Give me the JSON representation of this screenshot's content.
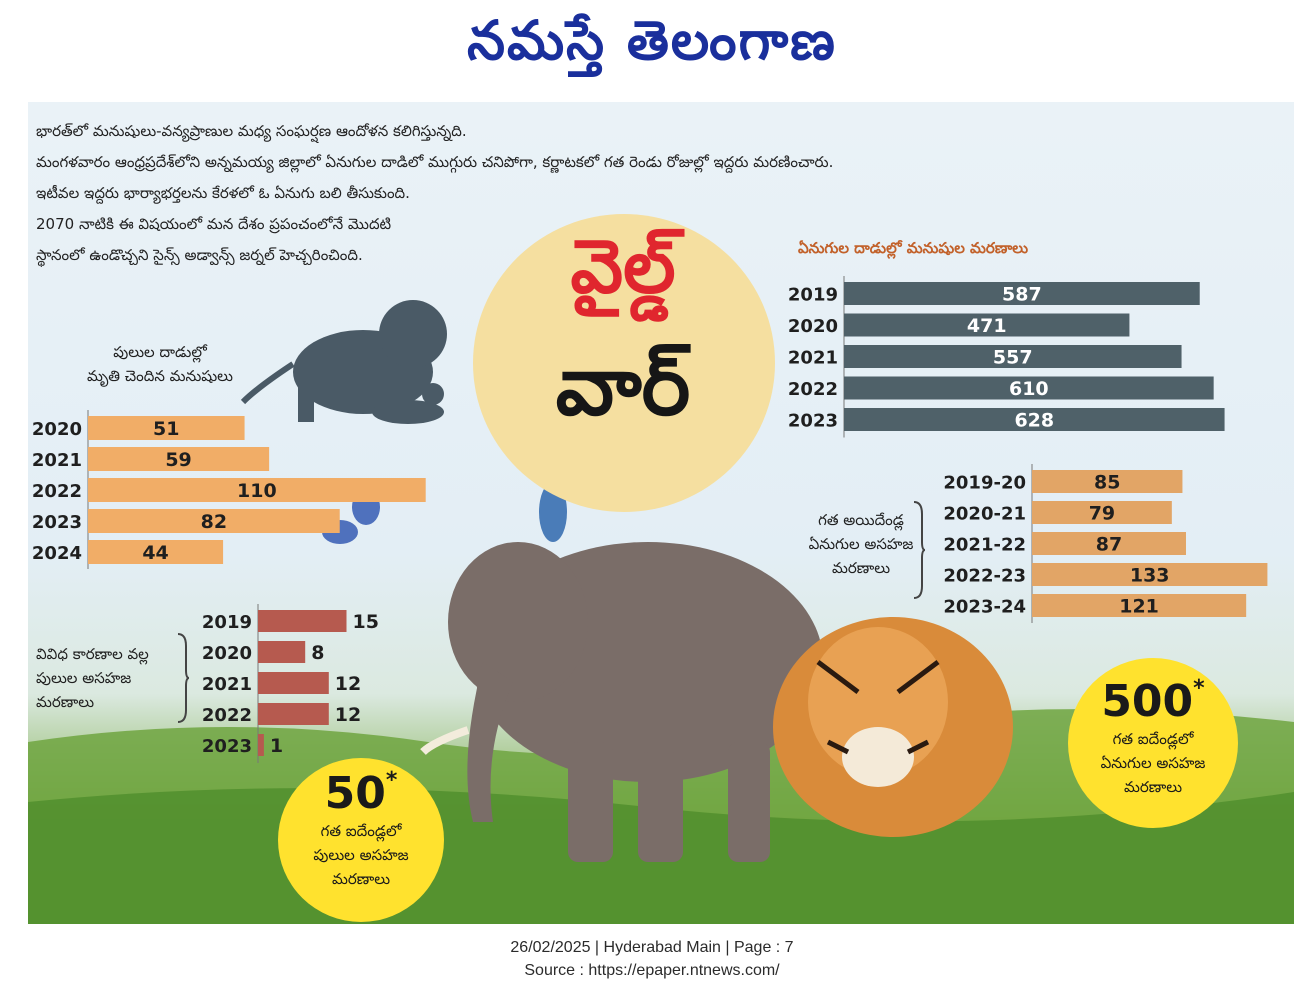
{
  "masthead": {
    "title": "నమస్తే తెలంగాణ"
  },
  "intro": [
    "భారత్‌లో మనుషులు-వన్యప్రాణుల మధ్య సంఘర్షణ ఆందోళన కలిగిస్తున్నది.",
    "మంగళవారం ఆంధ్రప్రదేశ్‌లోని అన్నమయ్య జిల్లాలో ఏనుగుల దాడిలో ముగ్గురు చనిపోగా, కర్ణాటకలో గత రెండు రోజుల్లో ఇద్దరు మరణించారు.",
    "ఇటీవల ఇద్దరు భార్యాభర్తలను కేరళలో ఓ ఏనుగు బలి తీసుకుంది.",
    "2070 నాటికి ఈ విషయంలో మన దేశం ప్రపంచంలోనే మొదటి",
    "స్థానంలో ఉండొచ్చని సైన్స్ అడ్వాన్స్ జర్నల్ హెచ్చరించింది."
  ],
  "headline": {
    "line1": "వైల్డ్",
    "line2": "వార్"
  },
  "colors": {
    "slate": "#4f6169",
    "orange": "#f1ad67",
    "tan": "#e2a566",
    "brick": "#b65a4f",
    "badge": "#ffe22e",
    "masthead": "#1a2f9c",
    "title_red": "#e0262e"
  },
  "chart_data": [
    {
      "id": "tiger-attacks",
      "type": "bar",
      "orientation": "horizontal",
      "title": "పులుల దాడుల్లో మృతి చెందిన మనుషులు",
      "title_lines": [
        "పులుల దాడుల్లో",
        "మృతి చెందిన మనుషులు"
      ],
      "categories": [
        "2020",
        "2021",
        "2022",
        "2023",
        "2024"
      ],
      "values": [
        51,
        59,
        110,
        82,
        44
      ]
    },
    {
      "id": "tiger-deaths",
      "type": "bar",
      "orientation": "horizontal",
      "title": "వివిధ కారణాల వల్ల పులుల అసహజ మరణాలు",
      "title_lines": [
        "వివిధ కారణాల వల్ల",
        "పులుల అసహజ",
        "మరణాలు"
      ],
      "categories": [
        "2019",
        "2020",
        "2021",
        "2022",
        "2023"
      ],
      "values": [
        15,
        8,
        12,
        12,
        1
      ]
    },
    {
      "id": "elephant-attacks",
      "type": "bar",
      "orientation": "horizontal",
      "title": "ఏనుగుల దాడుల్లో మనుషుల మరణాలు",
      "categories": [
        "2019",
        "2020",
        "2021",
        "2022",
        "2023"
      ],
      "values": [
        587,
        471,
        557,
        610,
        628
      ]
    },
    {
      "id": "elephant-deaths",
      "type": "bar",
      "orientation": "horizontal",
      "title": "గత అయిదేండ్ల ఏనుగుల అసహజ మరణాలు",
      "title_lines": [
        "గత అయిదేండ్ల",
        "ఏనుగుల అసహజ",
        "మరణాలు"
      ],
      "categories": [
        "2019-20",
        "2020-21",
        "2021-22",
        "2022-23",
        "2023-24"
      ],
      "values": [
        85,
        79,
        87,
        133,
        121
      ]
    }
  ],
  "badges": {
    "tigers": {
      "number": "50",
      "star": "*",
      "lines": [
        "గత ఐదేండ్లలో",
        "పులుల అసహజ",
        "మరణాలు"
      ]
    },
    "elephants": {
      "number": "500",
      "star": "*",
      "lines": [
        "గత ఐదేండ్లలో",
        "ఏనుగుల అసహజ",
        "మరణాలు"
      ]
    }
  },
  "footer": {
    "line1": "26/02/2025 | Hyderabad Main | Page : 7",
    "line2": "Source : https://epaper.ntnews.com/"
  }
}
